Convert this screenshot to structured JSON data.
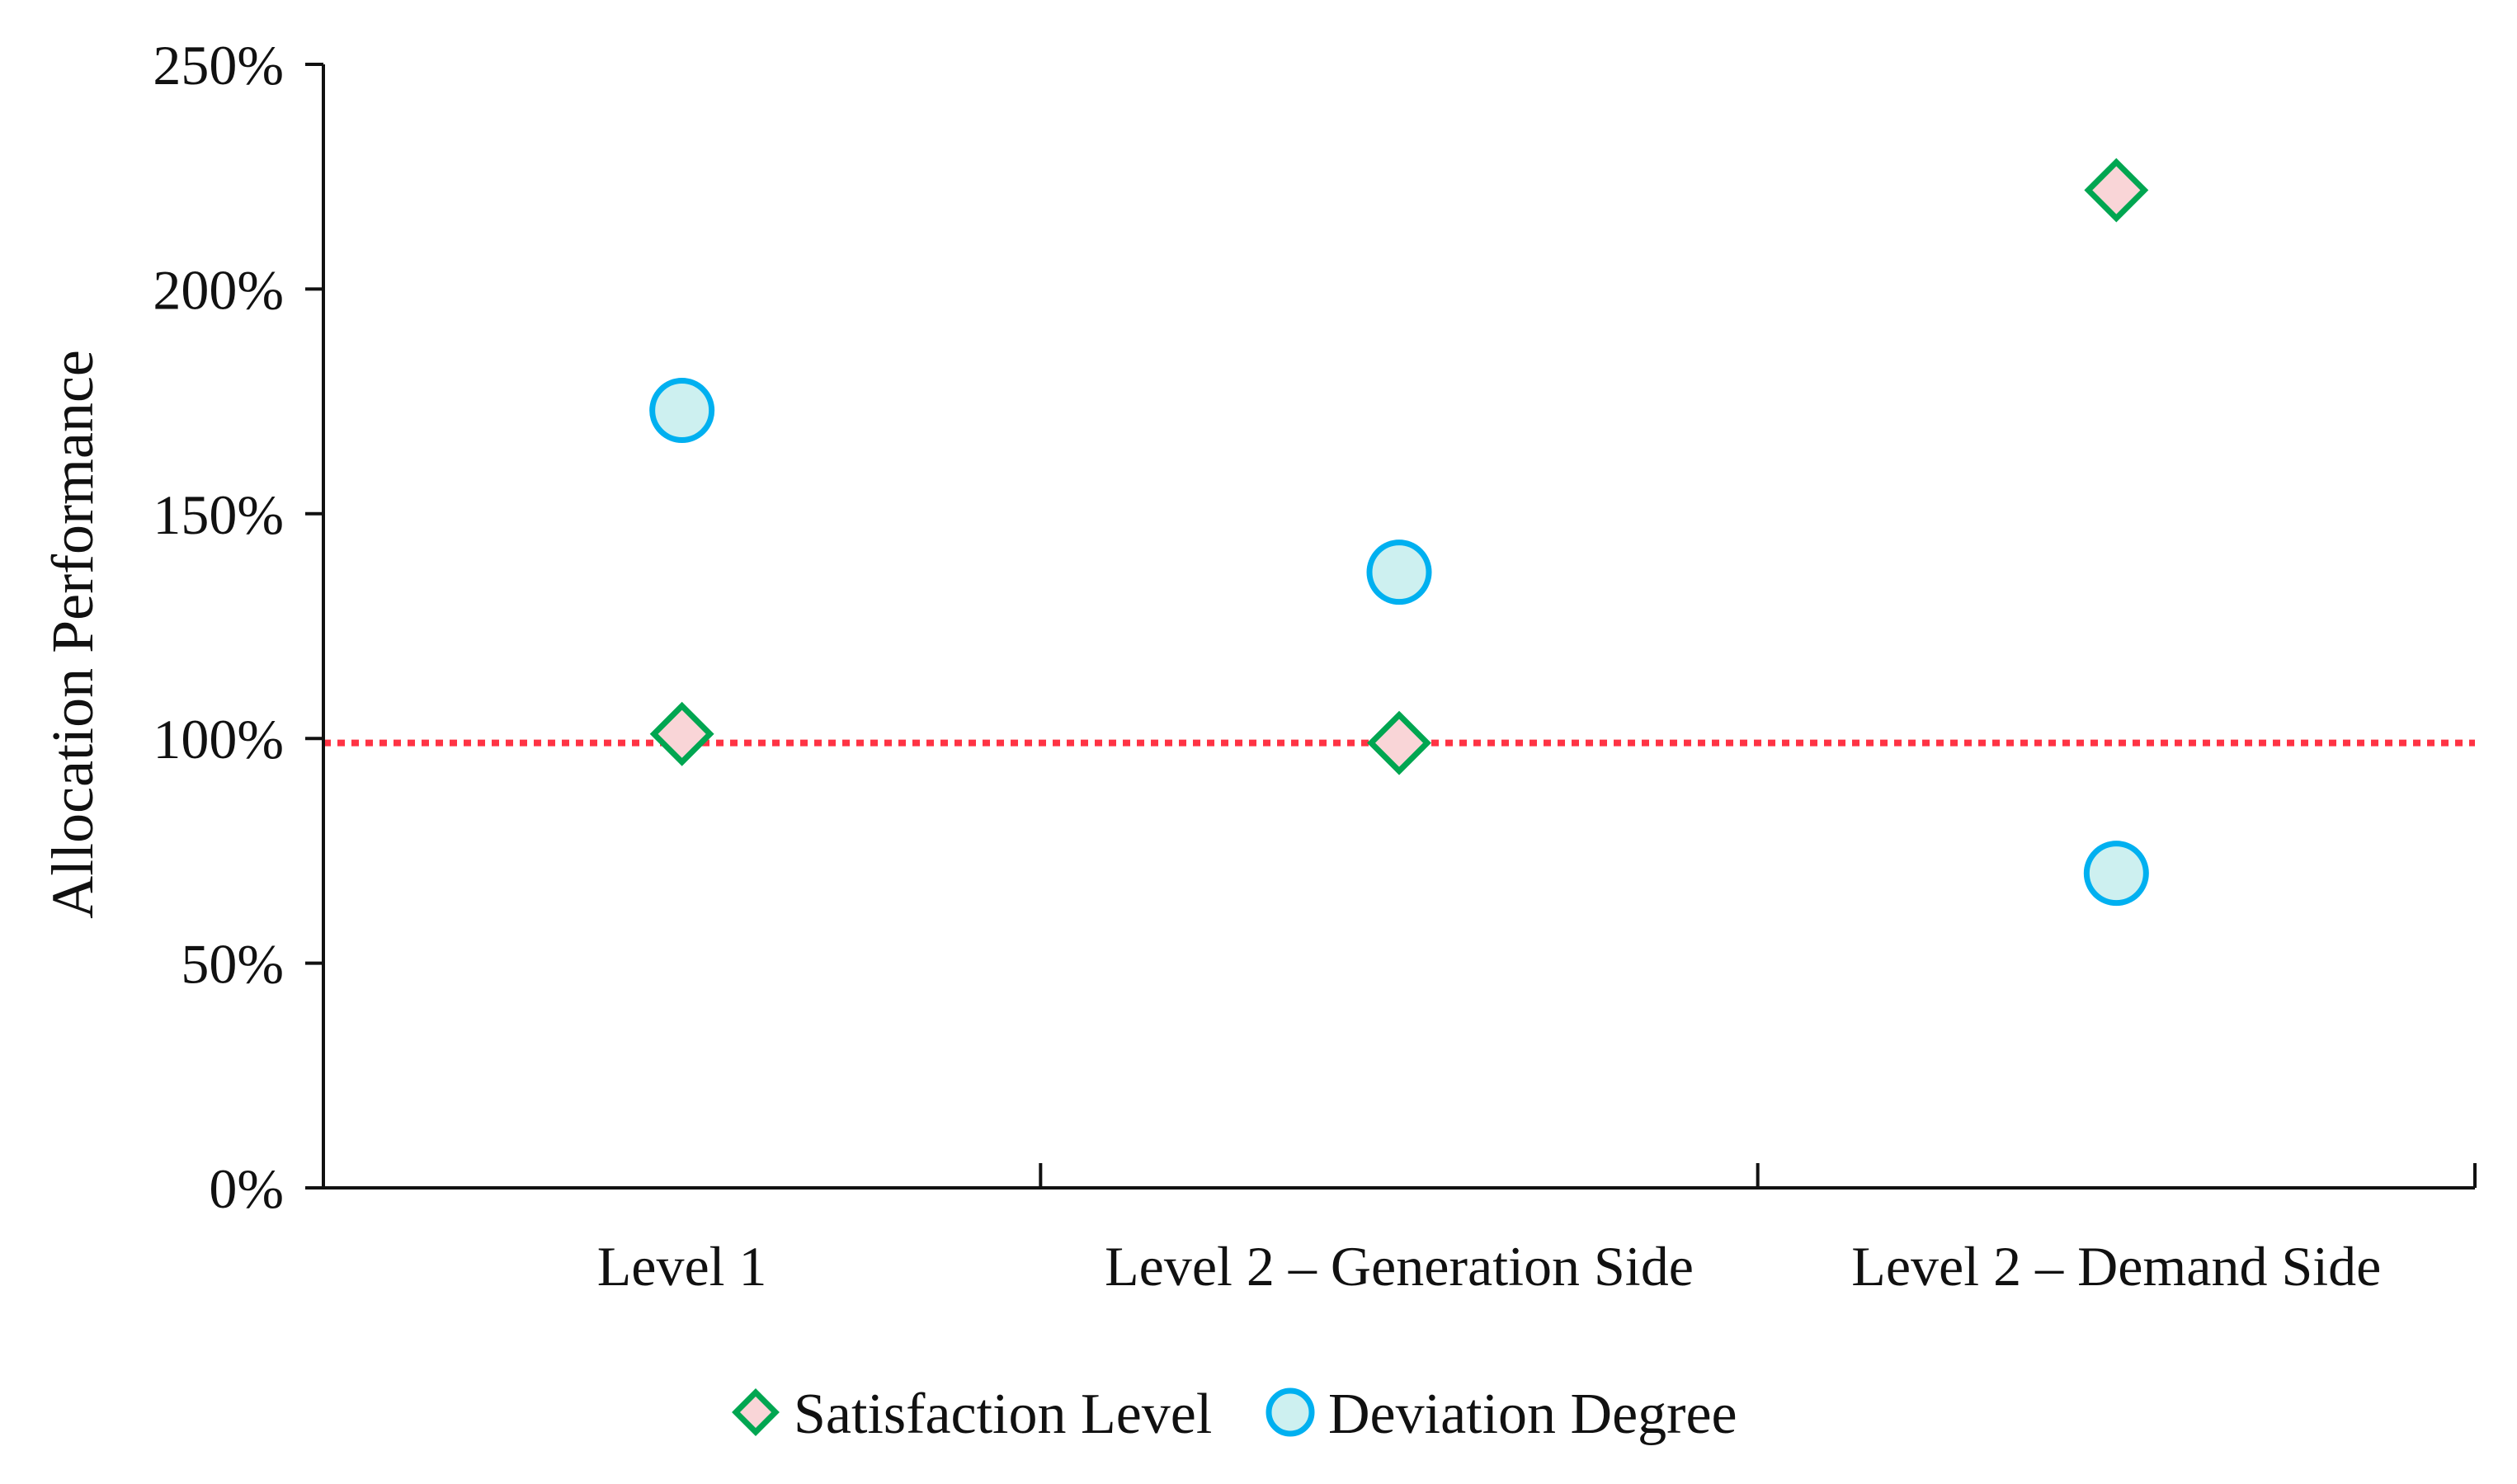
{
  "colors": {
    "satisfaction_stroke": "#00a651",
    "satisfaction_fill": "#f9d5d7",
    "deviation_stroke": "#00b0f0",
    "deviation_fill": "#cdf0f0",
    "reference_line": "#ff3344",
    "axis": "#111111"
  },
  "chart_data": {
    "type": "scatter",
    "title": "",
    "xlabel": "",
    "ylabel": "Allocation Performance",
    "categories": [
      "Level 1",
      "Level 2 – Generation Side",
      "Level 2 – Demand Side"
    ],
    "ylim": [
      0,
      250
    ],
    "yticks": [
      0,
      50,
      100,
      150,
      200,
      250
    ],
    "ytick_labels": [
      "0%",
      "50%",
      "100%",
      "150%",
      "200%",
      "250%"
    ],
    "grid": false,
    "legend_position": "bottom",
    "reference_line": {
      "y": 99,
      "style": "dotted"
    },
    "series": [
      {
        "name": "Satisfaction Level",
        "marker": "diamond",
        "values": [
          101,
          99,
          222
        ]
      },
      {
        "name": "Deviation Degree",
        "marker": "circle",
        "values": [
          173,
          137,
          70
        ]
      }
    ]
  }
}
